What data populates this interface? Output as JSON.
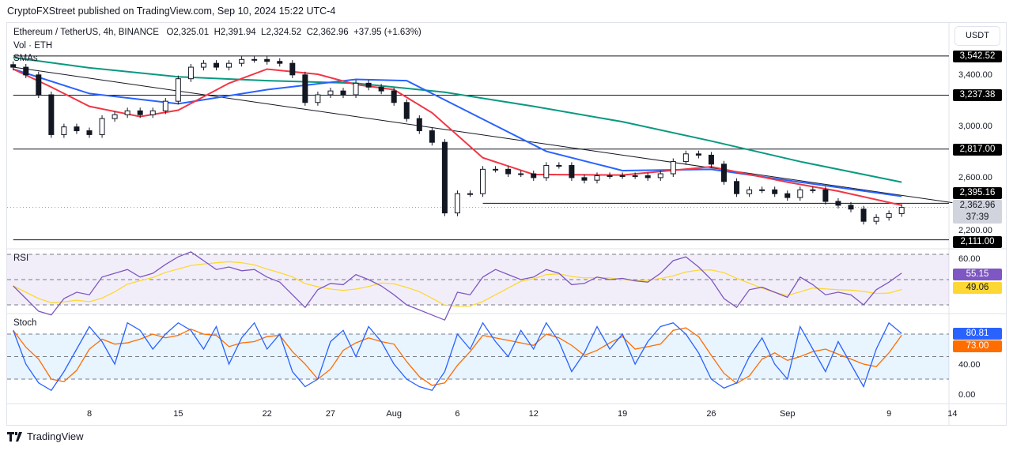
{
  "header": {
    "published": "CryptoFXStreet published on TradingView.com, Sep 10, 2024 15:22 UTC-4",
    "symbol": "Ethereum / TetherUS, 4h, BINANCE",
    "open": "O2,325.01",
    "high": "H2,391.94",
    "low": "L2,324.52",
    "close": "C2,362.96",
    "change": "+37.95 (+1.63%)",
    "volume": "Vol · ETH",
    "smas": "SMAs",
    "rsi": "RSI",
    "stoch": "Stoch",
    "currency": "USDT"
  },
  "footer": {
    "brand": "TradingView"
  },
  "colors": {
    "sma_short": "#f23645",
    "sma_mid": "#2962ff",
    "sma_long": "#089981",
    "rsi": "#7e57c2",
    "rsi_ma": "#fdd835",
    "stoch_k": "#2962ff",
    "stoch_d": "#ff6d00"
  },
  "chart_data": [
    {
      "type": "candlestick",
      "title": "Ethereum / TetherUS, 4h, BINANCE",
      "ylim": [
        2080,
        3600
      ],
      "yticks": [
        "3,400.00",
        "3,000.00",
        "2,600.00",
        "2,200.00"
      ],
      "ytick_values": [
        3400,
        3000,
        2600,
        2200
      ],
      "xticks": [
        {
          "label": "8",
          "date": "Jul 8"
        },
        {
          "label": "15",
          "date": "Jul 15"
        },
        {
          "label": "22",
          "date": "Jul 22"
        },
        {
          "label": "27",
          "date": "Jul 27"
        },
        {
          "label": "Aug",
          "date": "Aug 1"
        },
        {
          "label": "6",
          "date": "Aug 6"
        },
        {
          "label": "12",
          "date": "Aug 12"
        },
        {
          "label": "19",
          "date": "Aug 19"
        },
        {
          "label": "26",
          "date": "Aug 26"
        },
        {
          "label": "Sep",
          "date": "Sep 1"
        },
        {
          "label": "9",
          "date": "Sep 9"
        },
        {
          "label": "14",
          "date": "Sep 14"
        }
      ],
      "dates": [
        "Jul 2",
        "Jul 3",
        "Jul 4",
        "Jul 5",
        "Jul 6",
        "Jul 7",
        "Jul 8",
        "Jul 9",
        "Jul 10",
        "Jul 11",
        "Jul 12",
        "Jul 13",
        "Jul 14",
        "Jul 15",
        "Jul 16",
        "Jul 17",
        "Jul 18",
        "Jul 19",
        "Jul 20",
        "Jul 21",
        "Jul 22",
        "Jul 23",
        "Jul 24",
        "Jul 25",
        "Jul 26",
        "Jul 27",
        "Jul 28",
        "Jul 29",
        "Jul 30",
        "Jul 31",
        "Aug 1",
        "Aug 2",
        "Aug 3",
        "Aug 4",
        "Aug 5",
        "Aug 6",
        "Aug 7",
        "Aug 8",
        "Aug 9",
        "Aug 10",
        "Aug 11",
        "Aug 12",
        "Aug 13",
        "Aug 14",
        "Aug 15",
        "Aug 16",
        "Aug 17",
        "Aug 18",
        "Aug 19",
        "Aug 20",
        "Aug 21",
        "Aug 22",
        "Aug 23",
        "Aug 24",
        "Aug 25",
        "Aug 26",
        "Aug 27",
        "Aug 28",
        "Aug 29",
        "Aug 30",
        "Aug 31",
        "Sep 1",
        "Sep 2",
        "Sep 3",
        "Sep 4",
        "Sep 5",
        "Sep 6",
        "Sep 7",
        "Sep 8",
        "Sep 9",
        "Sep 10"
      ],
      "close": [
        3455,
        3395,
        3240,
        2930,
        2990,
        2960,
        2930,
        3055,
        3085,
        3115,
        3085,
        3115,
        3190,
        3365,
        3455,
        3485,
        3455,
        3485,
        3515,
        3515,
        3500,
        3485,
        3395,
        3180,
        3240,
        3270,
        3240,
        3330,
        3300,
        3270,
        3180,
        3055,
        2960,
        2870,
        2320,
        2470,
        2470,
        2660,
        2660,
        2625,
        2625,
        2595,
        2690,
        2690,
        2595,
        2575,
        2610,
        2610,
        2610,
        2610,
        2595,
        2625,
        2720,
        2780,
        2770,
        2700,
        2565,
        2470,
        2500,
        2500,
        2470,
        2440,
        2500,
        2500,
        2410,
        2380,
        2350,
        2255,
        2285,
        2315,
        2362.96
      ],
      "sma_short": [
        [
          "Jul 2",
          3440
        ],
        [
          "Jul 5",
          3300
        ],
        [
          "Jul 8",
          3150
        ],
        [
          "Jul 12",
          3070
        ],
        [
          "Jul 15",
          3120
        ],
        [
          "Jul 19",
          3330
        ],
        [
          "Jul 22",
          3440
        ],
        [
          "Jul 26",
          3400
        ],
        [
          "Jul 29",
          3320
        ],
        [
          "Aug 1",
          3280
        ],
        [
          "Aug 4",
          3100
        ],
        [
          "Aug 8",
          2750
        ],
        [
          "Aug 12",
          2620
        ],
        [
          "Aug 19",
          2615
        ],
        [
          "Aug 26",
          2680
        ],
        [
          "Sep 1",
          2560
        ],
        [
          "Sep 5",
          2490
        ],
        [
          "Sep 10",
          2380
        ]
      ],
      "sma_mid": [
        [
          "Jul 2",
          3440
        ],
        [
          "Jul 8",
          3250
        ],
        [
          "Jul 15",
          3170
        ],
        [
          "Jul 22",
          3280
        ],
        [
          "Jul 29",
          3360
        ],
        [
          "Aug 2",
          3350
        ],
        [
          "Aug 5",
          3200
        ],
        [
          "Aug 9",
          3000
        ],
        [
          "Aug 13",
          2800
        ],
        [
          "Aug 19",
          2650
        ],
        [
          "Aug 26",
          2660
        ],
        [
          "Sep 2",
          2560
        ],
        [
          "Sep 10",
          2450
        ]
      ],
      "sma_long": [
        [
          "Jul 2",
          3530
        ],
        [
          "Jul 8",
          3450
        ],
        [
          "Jul 15",
          3380
        ],
        [
          "Jul 22",
          3350
        ],
        [
          "Jul 29",
          3330
        ],
        [
          "Aug 5",
          3260
        ],
        [
          "Aug 12",
          3150
        ],
        [
          "Aug 19",
          3030
        ],
        [
          "Aug 26",
          2880
        ],
        [
          "Sep 2",
          2720
        ],
        [
          "Sep 10",
          2560
        ]
      ],
      "trendline": [
        [
          "Jul 2",
          3455
        ],
        [
          "Sep 14",
          2400
        ]
      ],
      "levels": [
        {
          "value": 3542.52,
          "label": "3,542.52",
          "from": "Jul 2"
        },
        {
          "value": 3237.38,
          "label": "3,237.38",
          "from": "Jul 2"
        },
        {
          "value": 2817.0,
          "label": "2,817.00",
          "from": "Jul 2"
        },
        {
          "value": 2395.16,
          "label": "2,395.16",
          "from": "Aug 8"
        },
        {
          "value": 2111.0,
          "label": "2,111.00",
          "from": "Jul 2"
        }
      ],
      "last_price": {
        "value": 2362.96,
        "label": "2,362.96",
        "countdown": "37:39"
      }
    },
    {
      "type": "line",
      "title": "RSI",
      "ylim": [
        25,
        75
      ],
      "bands": [
        70,
        50,
        30
      ],
      "ytick": "60.00",
      "values": [
        45,
        35,
        25,
        22,
        35,
        40,
        38,
        52,
        55,
        58,
        52,
        55,
        62,
        68,
        72,
        65,
        58,
        60,
        57,
        58,
        52,
        48,
        38,
        28,
        42,
        47,
        46,
        54,
        50,
        45,
        38,
        30,
        26,
        22,
        18,
        40,
        38,
        52,
        58,
        54,
        50,
        52,
        58,
        55,
        46,
        47,
        52,
        50,
        51,
        49,
        48,
        55,
        65,
        68,
        60,
        50,
        35,
        28,
        42,
        44,
        40,
        36,
        52,
        46,
        38,
        40,
        38,
        30,
        42,
        48,
        55.15
      ],
      "rsi_label": "55.15",
      "ma_label": "49.06"
    },
    {
      "type": "line",
      "title": "Stoch",
      "ylim": [
        -5,
        110
      ],
      "bands": [
        80,
        50,
        20
      ],
      "yticks": [
        "40.00",
        "0.00"
      ],
      "k": [
        85,
        40,
        15,
        5,
        30,
        60,
        90,
        70,
        40,
        95,
        85,
        60,
        80,
        95,
        85,
        60,
        90,
        40,
        75,
        95,
        60,
        80,
        30,
        10,
        20,
        70,
        85,
        50,
        90,
        70,
        40,
        20,
        10,
        5,
        30,
        80,
        60,
        95,
        70,
        50,
        85,
        60,
        95,
        70,
        30,
        55,
        90,
        60,
        80,
        40,
        70,
        90,
        95,
        80,
        55,
        20,
        8,
        15,
        50,
        75,
        40,
        20,
        90,
        60,
        30,
        70,
        40,
        10,
        60,
        95,
        80.81
      ],
      "k_label": "80.81",
      "d_label": "73.00"
    }
  ]
}
